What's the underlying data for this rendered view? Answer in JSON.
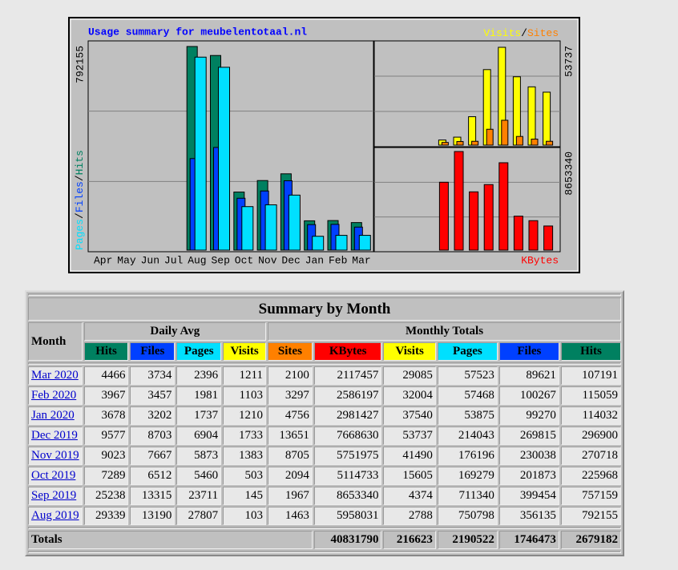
{
  "chart": {
    "title": "Usage summary for meubelentotaal.nl",
    "months": [
      "Apr",
      "May",
      "Jun",
      "Jul",
      "Aug",
      "Sep",
      "Oct",
      "Nov",
      "Dec",
      "Jan",
      "Feb",
      "Mar"
    ],
    "left_series": [
      "Pages",
      "Files",
      "Hits"
    ],
    "right_top_series": [
      "Visits",
      "Sites"
    ],
    "right_bottom_series": "KBytes",
    "separator": "/",
    "hits_scale": 792155,
    "visits_scale": 53737,
    "kbytes_scale": 8653340
  },
  "table": {
    "title": "Summary by Month",
    "month_header": "Month",
    "group_headers": [
      "Daily Avg",
      "Monthly Totals"
    ],
    "column_headers": [
      "Hits",
      "Files",
      "Pages",
      "Visits",
      "Sites",
      "KBytes",
      "Visits",
      "Pages",
      "Files",
      "Hits"
    ],
    "rows": [
      [
        "Mar 2020",
        4466,
        3734,
        2396,
        1211,
        2100,
        2117457,
        29085,
        57523,
        89621,
        107191
      ],
      [
        "Feb 2020",
        3967,
        3457,
        1981,
        1103,
        3297,
        2586197,
        32004,
        57468,
        100267,
        115059
      ],
      [
        "Jan 2020",
        3678,
        3202,
        1737,
        1210,
        4756,
        2981427,
        37540,
        53875,
        99270,
        114032
      ],
      [
        "Dec 2019",
        9577,
        8703,
        6904,
        1733,
        13651,
        7668630,
        53737,
        214043,
        269815,
        296900
      ],
      [
        "Nov 2019",
        9023,
        7667,
        5873,
        1383,
        8705,
        5751975,
        41490,
        176196,
        230038,
        270718
      ],
      [
        "Oct 2019",
        7289,
        6512,
        5460,
        503,
        2094,
        5114733,
        15605,
        169279,
        201873,
        225968
      ],
      [
        "Sep 2019",
        25238,
        13315,
        23711,
        145,
        1967,
        8653340,
        4374,
        711340,
        399454,
        757159
      ],
      [
        "Aug 2019",
        29339,
        13190,
        27807,
        103,
        1463,
        5958031,
        2788,
        750798,
        356135,
        792155
      ]
    ],
    "totals_label": "Totals",
    "totals": [
      40831790,
      216623,
      2190522,
      1746473,
      2679182
    ]
  }
}
